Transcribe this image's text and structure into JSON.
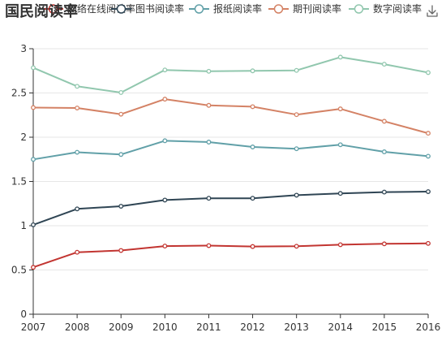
{
  "chart_data": {
    "type": "line",
    "title": "国民阅读率",
    "x": [
      "2007",
      "2008",
      "2009",
      "2010",
      "2011",
      "2012",
      "2013",
      "2014",
      "2015",
      "2016"
    ],
    "ylim": [
      0,
      3
    ],
    "yticks": [
      "0",
      "0.5",
      "1",
      "1.5",
      "2",
      "2.5",
      "3"
    ],
    "grid": true,
    "legend_position": "top",
    "series": [
      {
        "name": "网络在线阅读率",
        "color": "#c23531",
        "values": [
          0.53,
          0.7,
          0.72,
          0.77,
          0.775,
          0.765,
          0.768,
          0.785,
          0.795,
          0.8
        ]
      },
      {
        "name": "图书阅读率",
        "color": "#2f4554",
        "values": [
          1.01,
          1.19,
          1.22,
          1.29,
          1.31,
          1.31,
          1.345,
          1.365,
          1.38,
          1.385
        ]
      },
      {
        "name": "报纸阅读率",
        "color": "#61a0a8",
        "values": [
          1.75,
          1.83,
          1.805,
          1.96,
          1.945,
          1.89,
          1.87,
          1.915,
          1.835,
          1.785
        ]
      },
      {
        "name": "期刊阅读率",
        "color": "#d48265",
        "values": [
          2.335,
          2.33,
          2.26,
          2.43,
          2.36,
          2.345,
          2.255,
          2.32,
          2.18,
          2.045
        ]
      },
      {
        "name": "数字阅读率",
        "color": "#91c7ae",
        "values": [
          2.785,
          2.575,
          2.505,
          2.76,
          2.745,
          2.75,
          2.755,
          2.905,
          2.825,
          2.73
        ]
      }
    ]
  },
  "toolbox": {
    "icon": "download-icon"
  }
}
